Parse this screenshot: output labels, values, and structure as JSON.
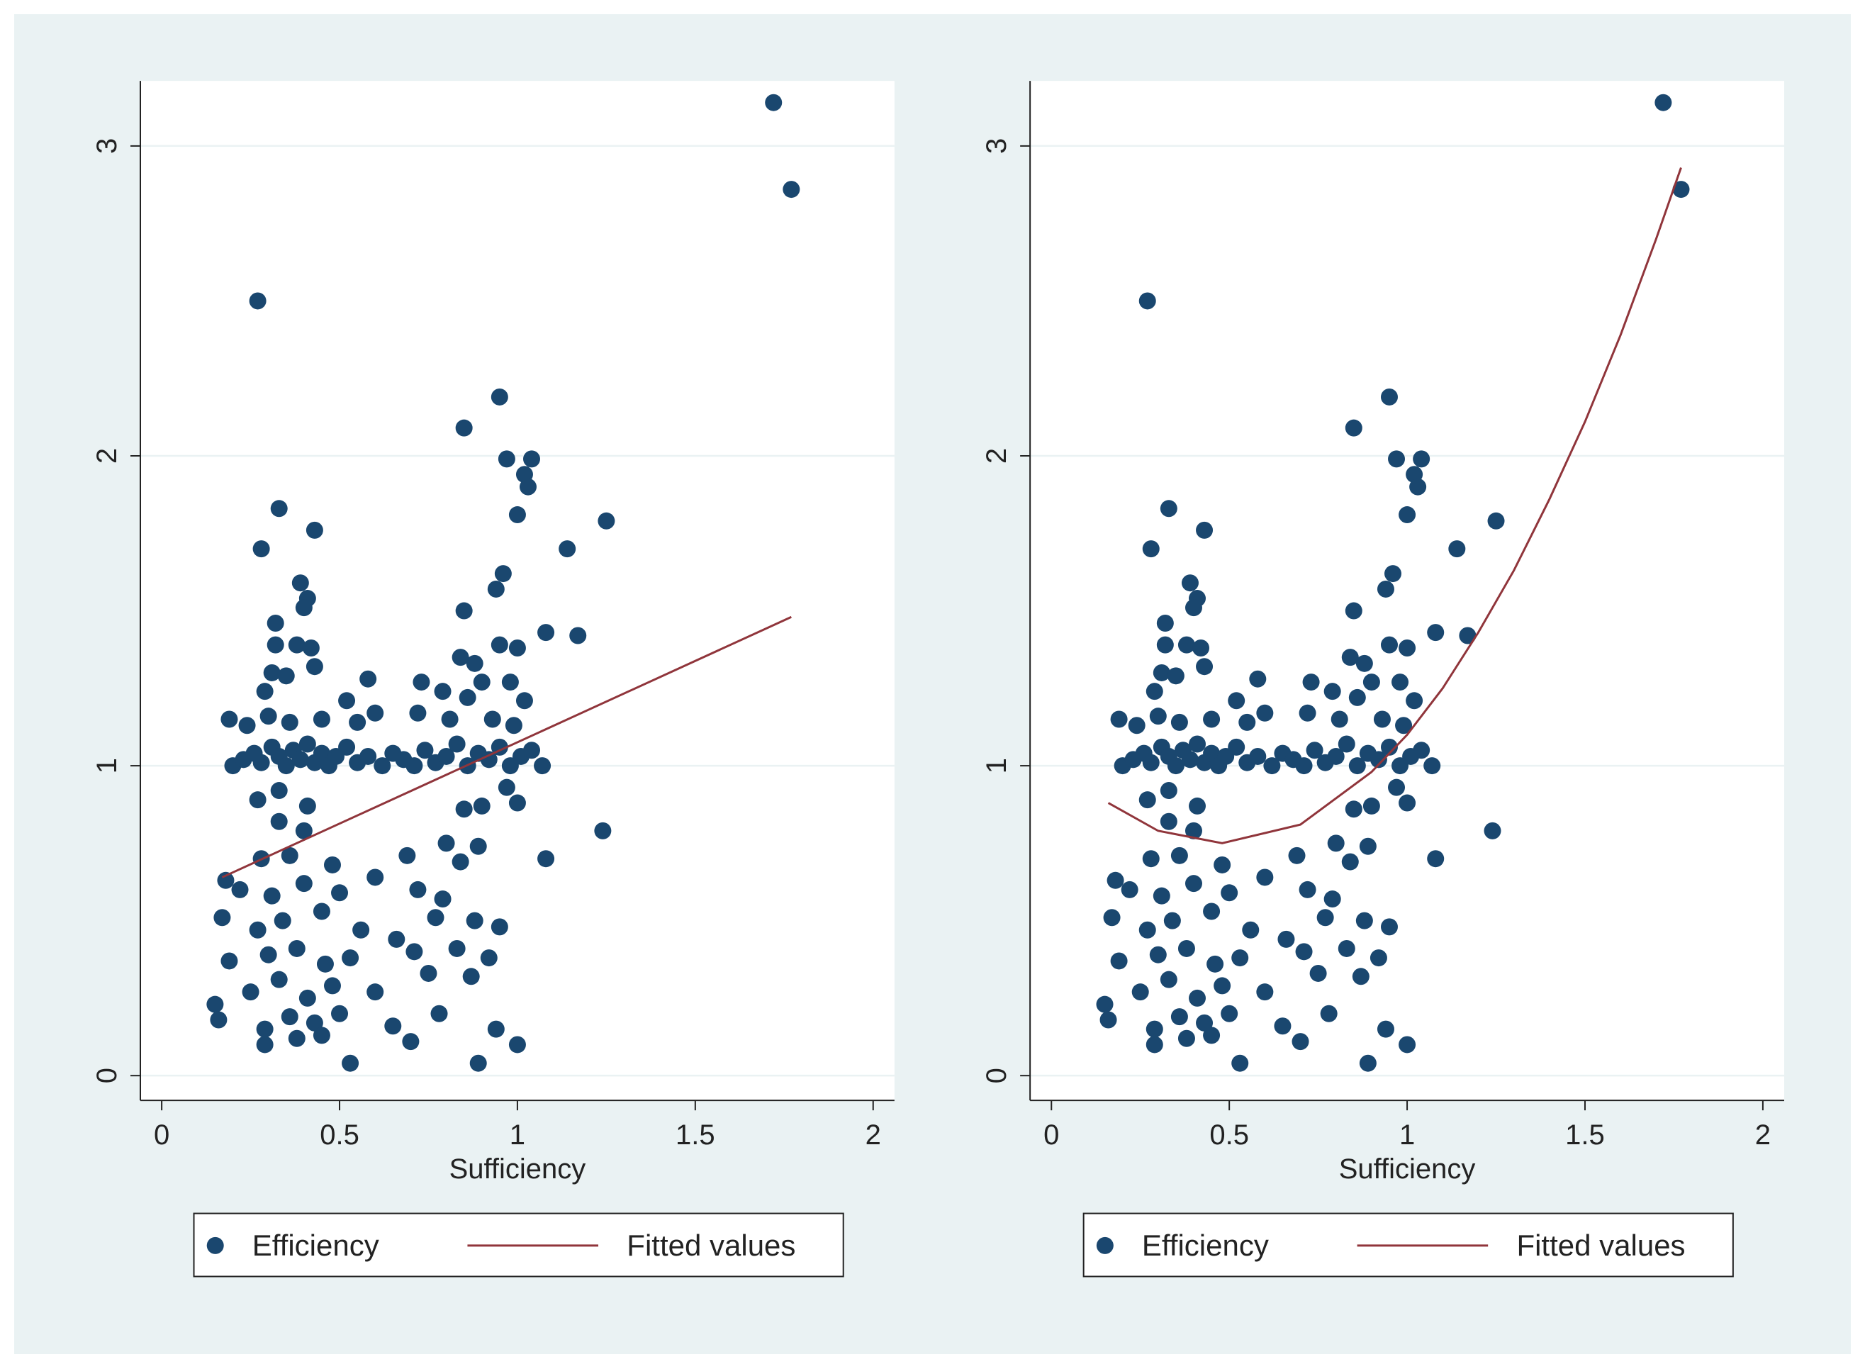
{
  "chart_data": [
    {
      "type": "scatter",
      "x_label": "Sufficiency",
      "xlim": [
        -0.06,
        2.06
      ],
      "ylim": [
        -0.08,
        3.21
      ],
      "xticks": [
        0,
        0.5,
        1,
        1.5,
        2
      ],
      "yticks": [
        0,
        1,
        2,
        3
      ],
      "grid": true,
      "legend": "bottom",
      "series": [
        {
          "name": "Efficiency",
          "color": "#1a476f",
          "x": [
            1.72,
            1.77,
            0.27,
            0.95,
            0.85,
            0.97,
            1.04,
            1.02,
            1.03,
            1.0,
            1.25,
            0.33,
            0.43,
            0.28,
            1.14,
            0.96,
            0.39,
            0.94,
            0.41,
            0.4,
            0.85,
            0.32,
            1.08,
            1.17,
            0.32,
            0.38,
            0.42,
            0.95,
            1.0,
            0.84,
            0.88,
            0.43,
            0.31,
            0.35,
            0.58,
            0.73,
            0.9,
            0.98,
            0.29,
            0.52,
            0.79,
            0.86,
            1.02,
            0.19,
            0.24,
            0.3,
            0.36,
            0.45,
            0.55,
            0.6,
            0.72,
            0.81,
            0.93,
            0.99,
            0.2,
            0.23,
            0.26,
            0.28,
            0.31,
            0.33,
            0.35,
            0.37,
            0.39,
            0.41,
            0.43,
            0.45,
            0.47,
            0.49,
            0.52,
            0.55,
            0.58,
            0.62,
            0.65,
            0.68,
            0.71,
            0.74,
            0.77,
            0.8,
            0.83,
            0.86,
            0.89,
            0.92,
            0.95,
            0.98,
            1.01,
            1.04,
            1.07,
            0.27,
            0.33,
            0.41,
            0.97,
            1.0,
            0.33,
            0.4,
            0.85,
            0.9,
            1.24,
            0.8,
            0.89,
            0.28,
            0.36,
            0.48,
            0.69,
            0.84,
            1.08,
            0.18,
            0.22,
            0.31,
            0.4,
            0.5,
            0.6,
            0.72,
            0.79,
            0.17,
            0.27,
            0.34,
            0.45,
            0.56,
            0.66,
            0.77,
            0.88,
            0.95,
            0.19,
            0.3,
            0.38,
            0.46,
            0.53,
            0.71,
            0.83,
            0.92,
            0.25,
            0.33,
            0.41,
            0.48,
            0.6,
            0.75,
            0.87,
            0.15,
            0.16,
            0.29,
            0.36,
            0.43,
            0.5,
            0.65,
            0.78,
            0.94,
            0.29,
            0.38,
            0.45,
            0.7,
            1.0,
            0.53,
            0.89
          ],
          "values": [
            3.14,
            2.86,
            2.5,
            2.19,
            2.09,
            1.99,
            1.99,
            1.94,
            1.9,
            1.81,
            1.79,
            1.83,
            1.76,
            1.7,
            1.7,
            1.62,
            1.59,
            1.57,
            1.54,
            1.51,
            1.5,
            1.46,
            1.43,
            1.42,
            1.39,
            1.39,
            1.38,
            1.39,
            1.38,
            1.35,
            1.33,
            1.32,
            1.3,
            1.29,
            1.28,
            1.27,
            1.27,
            1.27,
            1.24,
            1.21,
            1.24,
            1.22,
            1.21,
            1.15,
            1.13,
            1.16,
            1.14,
            1.15,
            1.14,
            1.17,
            1.17,
            1.15,
            1.15,
            1.13,
            1.0,
            1.02,
            1.04,
            1.01,
            1.06,
            1.03,
            1.0,
            1.05,
            1.02,
            1.07,
            1.01,
            1.04,
            1.0,
            1.03,
            1.06,
            1.01,
            1.03,
            1.0,
            1.04,
            1.02,
            1.0,
            1.05,
            1.01,
            1.03,
            1.07,
            1.0,
            1.04,
            1.02,
            1.06,
            1.0,
            1.03,
            1.05,
            1.0,
            0.89,
            0.92,
            0.87,
            0.93,
            0.88,
            0.82,
            0.79,
            0.86,
            0.87,
            0.79,
            0.75,
            0.74,
            0.7,
            0.71,
            0.68,
            0.71,
            0.69,
            0.7,
            0.63,
            0.6,
            0.58,
            0.62,
            0.59,
            0.64,
            0.6,
            0.57,
            0.51,
            0.47,
            0.5,
            0.53,
            0.47,
            0.44,
            0.51,
            0.5,
            0.48,
            0.37,
            0.39,
            0.41,
            0.36,
            0.38,
            0.4,
            0.41,
            0.38,
            0.27,
            0.31,
            0.25,
            0.29,
            0.27,
            0.33,
            0.32,
            0.23,
            0.18,
            0.15,
            0.19,
            0.17,
            0.2,
            0.16,
            0.2,
            0.15,
            0.1,
            0.12,
            0.13,
            0.11,
            0.1,
            0.04,
            0.04
          ]
        },
        {
          "name": "Fitted values",
          "color": "#90353b",
          "x": [
            0.17,
            1.77
          ],
          "values": [
            0.64,
            1.48
          ]
        }
      ]
    },
    {
      "type": "scatter",
      "x_label": "Sufficiency",
      "xlim": [
        -0.06,
        2.06
      ],
      "ylim": [
        -0.08,
        3.21
      ],
      "xticks": [
        0,
        0.5,
        1,
        1.5,
        2
      ],
      "yticks": [
        0,
        1,
        2,
        3
      ],
      "grid": true,
      "legend": "bottom",
      "series": [
        {
          "name": "Efficiency",
          "color": "#1a476f",
          "x": [
            1.72,
            1.77,
            0.27,
            0.95,
            0.85,
            0.97,
            1.04,
            1.02,
            1.03,
            1.0,
            1.25,
            0.33,
            0.43,
            0.28,
            1.14,
            0.96,
            0.39,
            0.94,
            0.41,
            0.4,
            0.85,
            0.32,
            1.08,
            1.17,
            0.32,
            0.38,
            0.42,
            0.95,
            1.0,
            0.84,
            0.88,
            0.43,
            0.31,
            0.35,
            0.58,
            0.73,
            0.9,
            0.98,
            0.29,
            0.52,
            0.79,
            0.86,
            1.02,
            0.19,
            0.24,
            0.3,
            0.36,
            0.45,
            0.55,
            0.6,
            0.72,
            0.81,
            0.93,
            0.99,
            0.2,
            0.23,
            0.26,
            0.28,
            0.31,
            0.33,
            0.35,
            0.37,
            0.39,
            0.41,
            0.43,
            0.45,
            0.47,
            0.49,
            0.52,
            0.55,
            0.58,
            0.62,
            0.65,
            0.68,
            0.71,
            0.74,
            0.77,
            0.8,
            0.83,
            0.86,
            0.89,
            0.92,
            0.95,
            0.98,
            1.01,
            1.04,
            1.07,
            0.27,
            0.33,
            0.41,
            0.97,
            1.0,
            0.33,
            0.4,
            0.85,
            0.9,
            1.24,
            0.8,
            0.89,
            0.28,
            0.36,
            0.48,
            0.69,
            0.84,
            1.08,
            0.18,
            0.22,
            0.31,
            0.4,
            0.5,
            0.6,
            0.72,
            0.79,
            0.17,
            0.27,
            0.34,
            0.45,
            0.56,
            0.66,
            0.77,
            0.88,
            0.95,
            0.19,
            0.3,
            0.38,
            0.46,
            0.53,
            0.71,
            0.83,
            0.92,
            0.25,
            0.33,
            0.41,
            0.48,
            0.6,
            0.75,
            0.87,
            0.15,
            0.16,
            0.29,
            0.36,
            0.43,
            0.5,
            0.65,
            0.78,
            0.94,
            0.29,
            0.38,
            0.45,
            0.7,
            1.0,
            0.53,
            0.89
          ],
          "values": [
            3.14,
            2.86,
            2.5,
            2.19,
            2.09,
            1.99,
            1.99,
            1.94,
            1.9,
            1.81,
            1.79,
            1.83,
            1.76,
            1.7,
            1.7,
            1.62,
            1.59,
            1.57,
            1.54,
            1.51,
            1.5,
            1.46,
            1.43,
            1.42,
            1.39,
            1.39,
            1.38,
            1.39,
            1.38,
            1.35,
            1.33,
            1.32,
            1.3,
            1.29,
            1.28,
            1.27,
            1.27,
            1.27,
            1.24,
            1.21,
            1.24,
            1.22,
            1.21,
            1.15,
            1.13,
            1.16,
            1.14,
            1.15,
            1.14,
            1.17,
            1.17,
            1.15,
            1.15,
            1.13,
            1.0,
            1.02,
            1.04,
            1.01,
            1.06,
            1.03,
            1.0,
            1.05,
            1.02,
            1.07,
            1.01,
            1.04,
            1.0,
            1.03,
            1.06,
            1.01,
            1.03,
            1.0,
            1.04,
            1.02,
            1.0,
            1.05,
            1.01,
            1.03,
            1.07,
            1.0,
            1.04,
            1.02,
            1.06,
            1.0,
            1.03,
            1.05,
            1.0,
            0.89,
            0.92,
            0.87,
            0.93,
            0.88,
            0.82,
            0.79,
            0.86,
            0.87,
            0.79,
            0.75,
            0.74,
            0.7,
            0.71,
            0.68,
            0.71,
            0.69,
            0.7,
            0.63,
            0.6,
            0.58,
            0.62,
            0.59,
            0.64,
            0.6,
            0.57,
            0.51,
            0.47,
            0.5,
            0.53,
            0.47,
            0.44,
            0.51,
            0.5,
            0.48,
            0.37,
            0.39,
            0.41,
            0.36,
            0.38,
            0.4,
            0.41,
            0.38,
            0.27,
            0.31,
            0.25,
            0.29,
            0.27,
            0.33,
            0.32,
            0.23,
            0.18,
            0.15,
            0.19,
            0.17,
            0.2,
            0.16,
            0.2,
            0.15,
            0.1,
            0.12,
            0.13,
            0.11,
            0.1,
            0.04,
            0.04
          ]
        },
        {
          "name": "Fitted values",
          "color": "#90353b",
          "x": [
            0.16,
            0.3,
            0.48,
            0.7,
            0.9,
            1.0,
            1.1,
            1.2,
            1.3,
            1.4,
            1.5,
            1.6,
            1.7,
            1.77
          ],
          "values": [
            0.88,
            0.79,
            0.75,
            0.81,
            0.98,
            1.1,
            1.25,
            1.43,
            1.63,
            1.86,
            2.11,
            2.39,
            2.7,
            2.93
          ]
        }
      ]
    }
  ]
}
